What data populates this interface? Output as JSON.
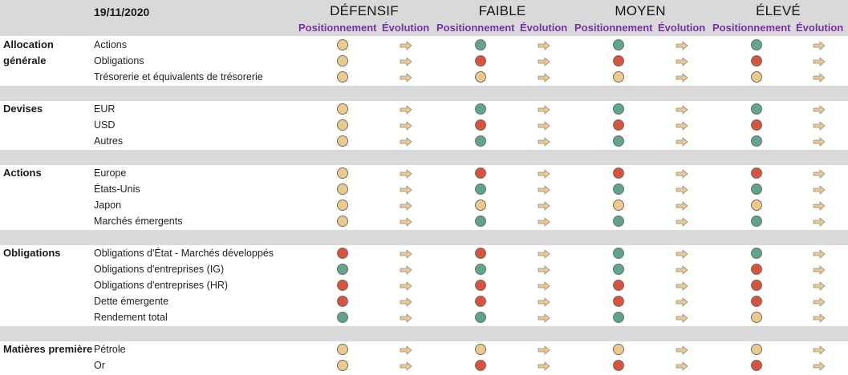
{
  "header": {
    "date": "19/11/2020",
    "profiles": [
      "DÉFENSIF",
      "FAIBLE",
      "MOYEN",
      "ÉLEVÉ"
    ],
    "sub_positioning": "Positionnement",
    "sub_evolution": "Évolution"
  },
  "colors": {
    "neutral": "#efc98a",
    "positive": "#5fa58c",
    "negative": "#d9533a",
    "arrow": "#efc98a"
  },
  "sections": [
    {
      "name": "Allocation\ngénérale",
      "rows": [
        {
          "label": "Actions",
          "pos": [
            "neutral",
            "positive",
            "positive",
            "positive"
          ]
        },
        {
          "label": "Obligations",
          "pos": [
            "neutral",
            "negative",
            "negative",
            "negative"
          ]
        },
        {
          "label": "Trésorerie et équivalents de trésorerie",
          "pos": [
            "neutral",
            "neutral",
            "neutral",
            "neutral"
          ]
        }
      ]
    },
    {
      "name": "Devises",
      "rows": [
        {
          "label": "EUR",
          "pos": [
            "neutral",
            "positive",
            "positive",
            "positive"
          ]
        },
        {
          "label": "USD",
          "pos": [
            "neutral",
            "negative",
            "negative",
            "negative"
          ]
        },
        {
          "label": "Autres",
          "pos": [
            "neutral",
            "positive",
            "positive",
            "positive"
          ]
        }
      ]
    },
    {
      "name": "Actions",
      "rows": [
        {
          "label": "Europe",
          "pos": [
            "neutral",
            "negative",
            "negative",
            "negative"
          ]
        },
        {
          "label": "États-Unis",
          "pos": [
            "neutral",
            "positive",
            "positive",
            "positive"
          ]
        },
        {
          "label": "Japon",
          "pos": [
            "neutral",
            "neutral",
            "neutral",
            "neutral"
          ]
        },
        {
          "label": "Marchés émergents",
          "pos": [
            "neutral",
            "positive",
            "positive",
            "positive"
          ]
        }
      ]
    },
    {
      "name": "Obligations",
      "rows": [
        {
          "label": "Obligations d'État - Marchés développés",
          "pos": [
            "negative",
            "negative",
            "positive",
            "positive"
          ]
        },
        {
          "label": "Obligations d'entreprises (IG)",
          "pos": [
            "positive",
            "positive",
            "positive",
            "negative"
          ]
        },
        {
          "label": "Obligations d'entreprises (HR)",
          "pos": [
            "negative",
            "negative",
            "negative",
            "negative"
          ]
        },
        {
          "label": "Dette émergente",
          "pos": [
            "negative",
            "negative",
            "negative",
            "negative"
          ]
        },
        {
          "label": "Rendement total",
          "pos": [
            "positive",
            "positive",
            "positive",
            "neutral"
          ]
        }
      ]
    },
    {
      "name": "Matières première",
      "rows": [
        {
          "label": "Pétrole",
          "pos": [
            "neutral",
            "neutral",
            "neutral",
            "neutral"
          ]
        },
        {
          "label": "Or",
          "pos": [
            "neutral",
            "negative",
            "negative",
            "negative"
          ]
        }
      ]
    }
  ]
}
